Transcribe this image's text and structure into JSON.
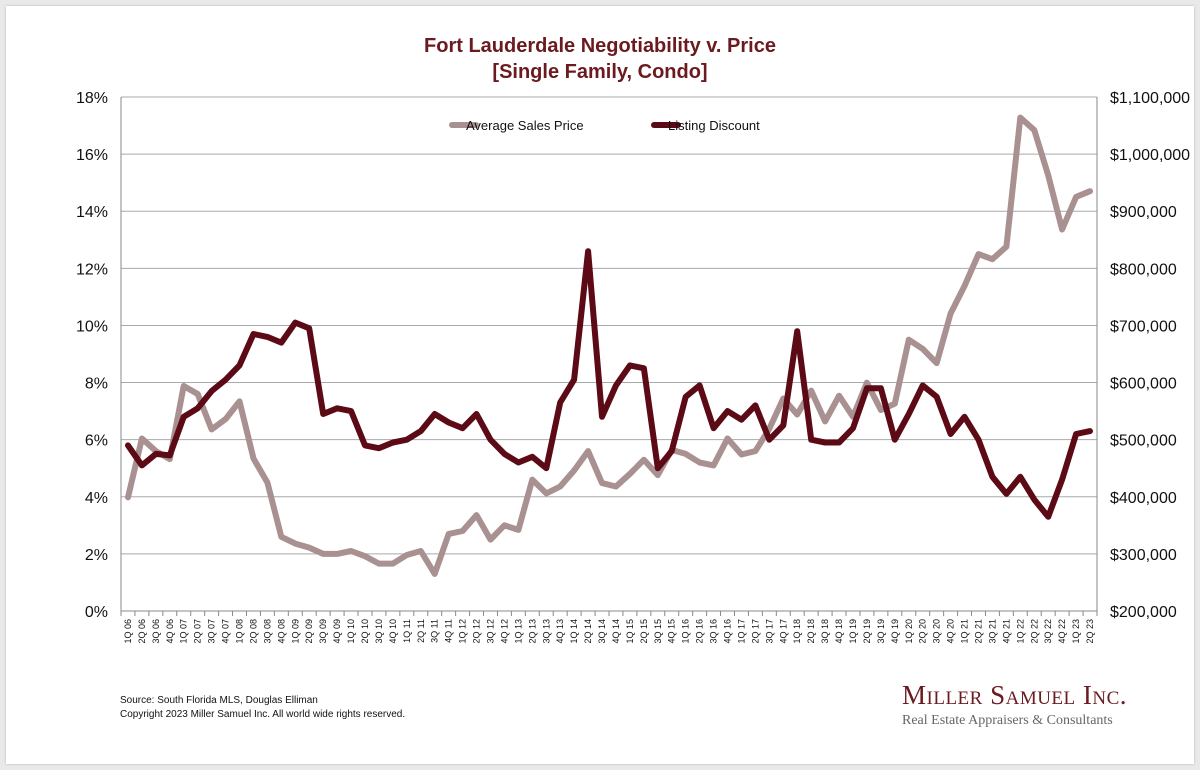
{
  "chart_data": {
    "type": "line",
    "title": "Fort Lauderdale Negotiability v. Price",
    "subtitle": "[Single Family, Condo]",
    "y_left": {
      "min": 0,
      "max": 18,
      "step": 2,
      "ticks": [
        "0%",
        "2%",
        "4%",
        "6%",
        "8%",
        "10%",
        "12%",
        "14%",
        "16%",
        "18%"
      ]
    },
    "y_right": {
      "min": 200000,
      "max": 1100000,
      "step": 100000,
      "ticks": [
        "$200,000",
        "$300,000",
        "$400,000",
        "$500,000",
        "$600,000",
        "$700,000",
        "$800,000",
        "$900,000",
        "$1,000,000",
        "$1,100,000"
      ]
    },
    "grid": true,
    "legend_position": "top-center",
    "categories": [
      "1Q 06",
      "2Q 06",
      "3Q 06",
      "4Q 06",
      "1Q 07",
      "2Q 07",
      "3Q 07",
      "4Q 07",
      "1Q 08",
      "2Q 08",
      "3Q 08",
      "4Q 08",
      "1Q 09",
      "2Q 09",
      "3Q 09",
      "4Q 09",
      "1Q 10",
      "2Q 10",
      "3Q 10",
      "4Q 10",
      "1Q 11",
      "2Q 11",
      "3Q 11",
      "4Q 11",
      "1Q 12",
      "2Q 12",
      "3Q 12",
      "4Q 12",
      "1Q 13",
      "2Q 13",
      "3Q 13",
      "4Q 13",
      "1Q 14",
      "2Q 14",
      "3Q 14",
      "4Q 14",
      "1Q 15",
      "2Q 15",
      "3Q 15",
      "4Q 15",
      "1Q 16",
      "2Q 16",
      "3Q 16",
      "4Q 16",
      "1Q 17",
      "2Q 17",
      "3Q 17",
      "4Q 17",
      "1Q 18",
      "2Q 18",
      "3Q 18",
      "4Q 18",
      "1Q 19",
      "2Q 19",
      "3Q 19",
      "4Q 19",
      "1Q 20",
      "2Q 20",
      "3Q 20",
      "4Q 20",
      "1Q 21",
      "2Q 21",
      "3Q 21",
      "4Q 21",
      "1Q 22",
      "2Q 22",
      "3Q 22",
      "4Q 22",
      "1Q 23",
      "2Q 23"
    ],
    "series": [
      {
        "name": "Average Sales Price",
        "axis": "right",
        "color": "#a89190",
        "values": [
          399000,
          502000,
          480000,
          466000,
          594000,
          580000,
          518000,
          536000,
          567000,
          467000,
          425000,
          330000,
          318000,
          311000,
          300000,
          300000,
          305000,
          296000,
          283000,
          283000,
          298000,
          305000,
          265000,
          335000,
          340000,
          368000,
          325000,
          350000,
          342000,
          430000,
          406000,
          418000,
          446000,
          480000,
          424000,
          418000,
          440000,
          465000,
          438000,
          482000,
          475000,
          460000,
          455000,
          502000,
          474000,
          480000,
          519000,
          572000,
          544000,
          586000,
          532000,
          577000,
          540000,
          600000,
          552000,
          563000,
          675000,
          659000,
          634000,
          721000,
          769000,
          825000,
          816000,
          838000,
          1064000,
          1042000,
          963000,
          868000,
          925000,
          935000
        ]
      },
      {
        "name": "Listing Discount",
        "axis": "left",
        "color": "#5c0a15",
        "values": [
          5.8,
          5.1,
          5.5,
          5.45,
          6.8,
          7.1,
          7.7,
          8.1,
          8.6,
          9.7,
          9.6,
          9.4,
          10.1,
          9.9,
          6.9,
          7.1,
          7.0,
          5.8,
          5.7,
          5.9,
          6.0,
          6.3,
          6.9,
          6.6,
          6.4,
          6.9,
          6.0,
          5.5,
          5.2,
          5.4,
          5.0,
          7.3,
          8.1,
          12.6,
          6.8,
          7.9,
          8.6,
          8.5,
          5.0,
          5.6,
          7.5,
          7.9,
          6.4,
          7.0,
          6.7,
          7.2,
          6.0,
          6.5,
          9.8,
          6.0,
          5.9,
          5.9,
          6.4,
          7.8,
          7.8,
          6.0,
          6.9,
          7.9,
          7.5,
          6.2,
          6.8,
          6.0,
          4.7,
          4.1,
          4.7,
          3.9,
          3.3,
          4.6,
          6.2,
          6.3
        ]
      }
    ],
    "source_lines": [
      "Source: South Florida MLS, Douglas Elliman",
      "Copyright 2023 Miller Samuel Inc.  All world wide rights reserved."
    ]
  },
  "logo": {
    "name": "Miller Samuel Inc.",
    "tagline": "Real Estate Appraisers & Consultants"
  }
}
